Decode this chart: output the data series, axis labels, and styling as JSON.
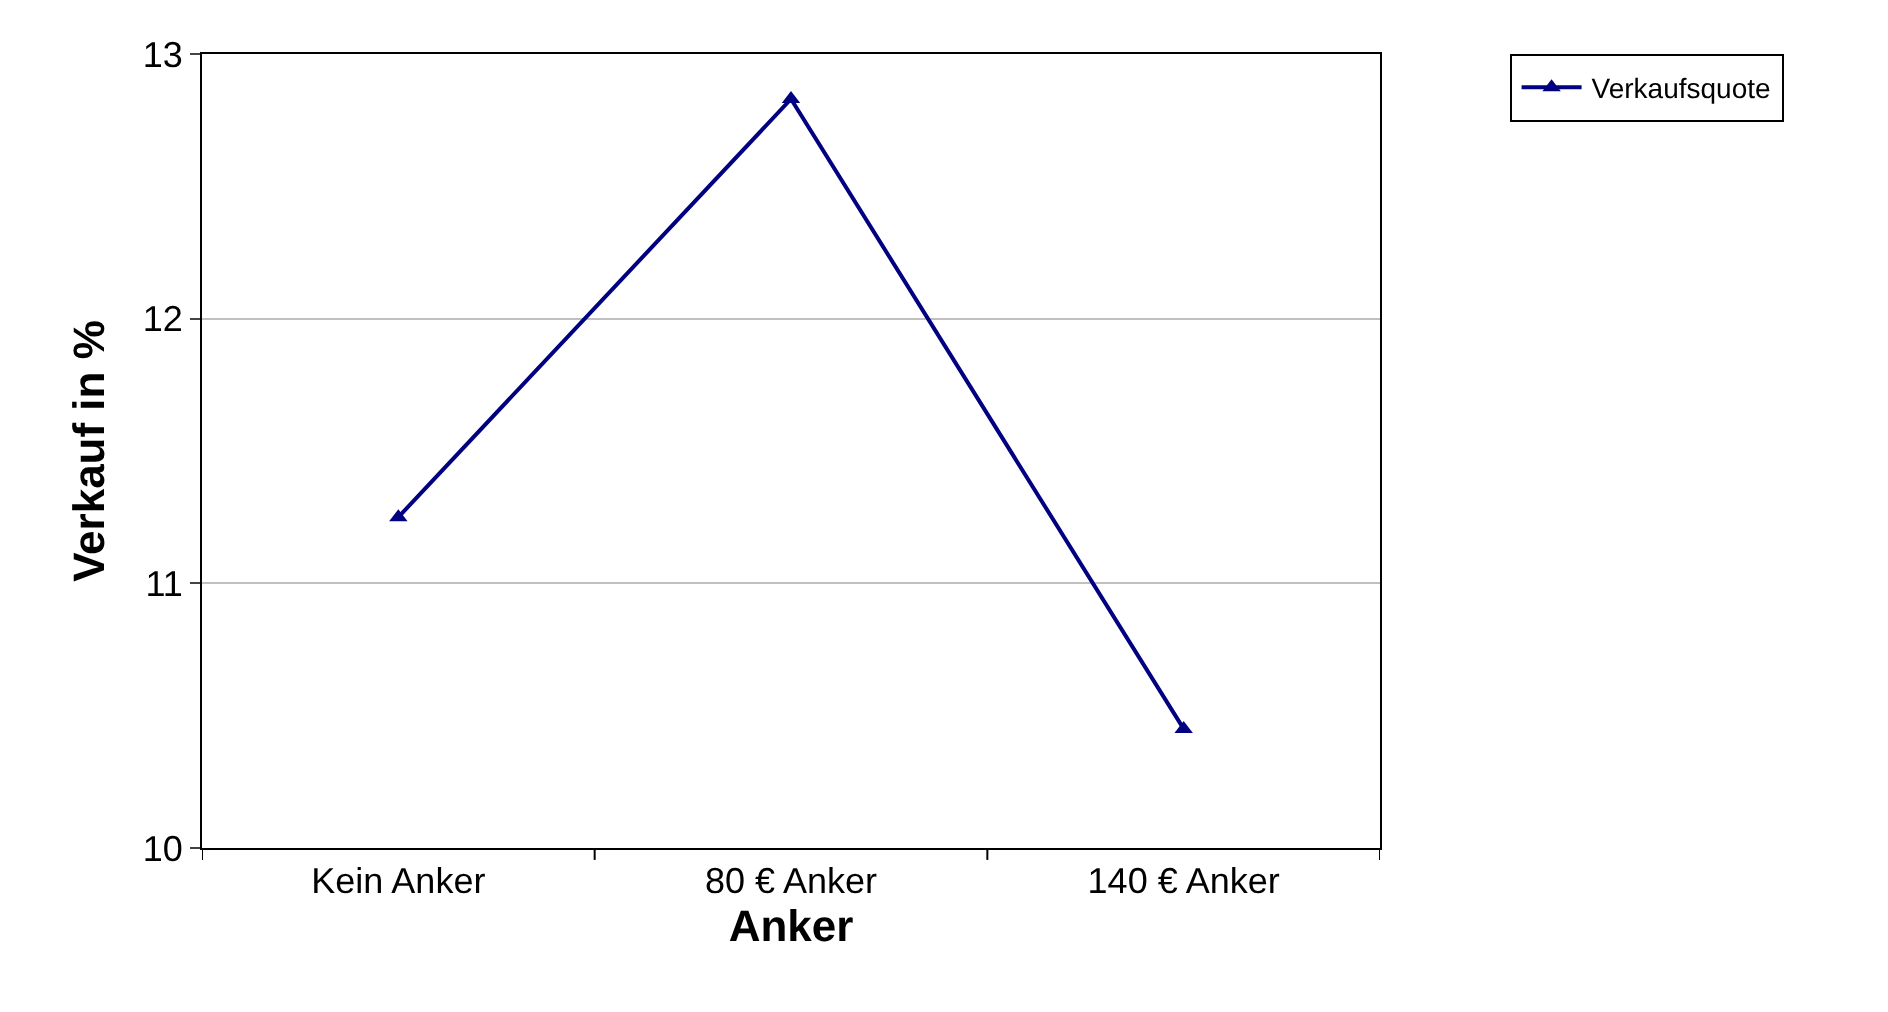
{
  "chart_data": {
    "type": "line",
    "xlabel": "Anker",
    "ylabel": "Verkauf in %",
    "categories": [
      "Kein Anker",
      "80 € Anker",
      "140 € Anker"
    ],
    "series": [
      {
        "name": "Verkaufsquote",
        "color": "#000080",
        "values": [
          11.25,
          12.83,
          10.45
        ]
      }
    ],
    "ylim": [
      10,
      13
    ],
    "yticks": [
      10,
      11,
      12,
      13
    ],
    "grid": "y",
    "legend": "top right",
    "marker": "triangle",
    "line_style": "solid"
  }
}
